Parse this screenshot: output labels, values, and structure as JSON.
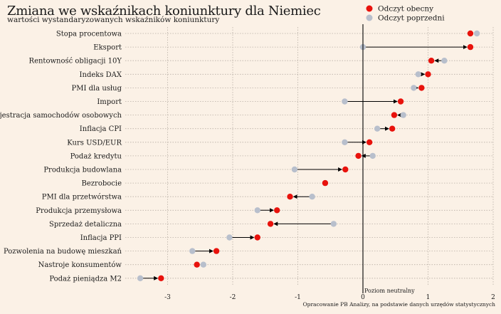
{
  "header": {
    "title": "Zmiana we wskaźnikach koniunktury dla Niemiec",
    "subtitle": "wartości wystandaryzowanych wskaźników koniunktury"
  },
  "legend": {
    "current": "Odczyt obecny",
    "previous": "Odczyt poprzedni"
  },
  "zero_line_label": "Poziom neutralny",
  "source": "Opracowanie PB Analizy, na podstawie danych urzędów statystycznych",
  "colors": {
    "current": "#e8120c",
    "previous": "#b8bfcc",
    "background": "#fbf1e6",
    "grid": "#b9b0a6"
  },
  "chart_data": {
    "type": "dot-arrow",
    "xlim": [
      -3.5,
      2.0
    ],
    "x_ticks": [
      -3,
      -2,
      -1,
      0,
      1,
      2
    ],
    "x_tick_labels": [
      "-3",
      "-2",
      "-1",
      "0",
      "1",
      "2"
    ],
    "series_names": [
      "Odczyt obecny",
      "Odczyt poprzedni"
    ],
    "categories": [
      "Stopa procentowa",
      "Eksport",
      "Rentowność obligacji 10Y",
      "Indeks DAX",
      "PMI dla usług",
      "Import",
      "Rejestracja samochodów osobowych",
      "Inflacja CPI",
      "Kurs USD/EUR",
      "Podaż kredytu",
      "Produkcja budowlana",
      "Bezrobocie",
      "PMI dla przetwórstwa",
      "Produkcja przemysłowa",
      "Sprzedaż detaliczna",
      "Inflacja PPI",
      "Pozwolenia na budowę mieszkań",
      "Nastroje konsumentów",
      "Podaż pieniądza M2"
    ],
    "current": [
      1.65,
      1.65,
      1.05,
      1.0,
      0.9,
      0.58,
      0.48,
      0.45,
      0.1,
      -0.07,
      -0.27,
      -0.58,
      -1.12,
      -1.32,
      -1.42,
      -1.62,
      -2.25,
      -2.55,
      -3.1
    ],
    "previous": [
      1.75,
      0.0,
      1.25,
      0.85,
      0.78,
      -0.28,
      0.62,
      0.22,
      -0.28,
      0.15,
      -1.05,
      -0.58,
      -0.78,
      -1.62,
      -0.45,
      -2.05,
      -2.62,
      -2.45,
      -3.42
    ]
  }
}
